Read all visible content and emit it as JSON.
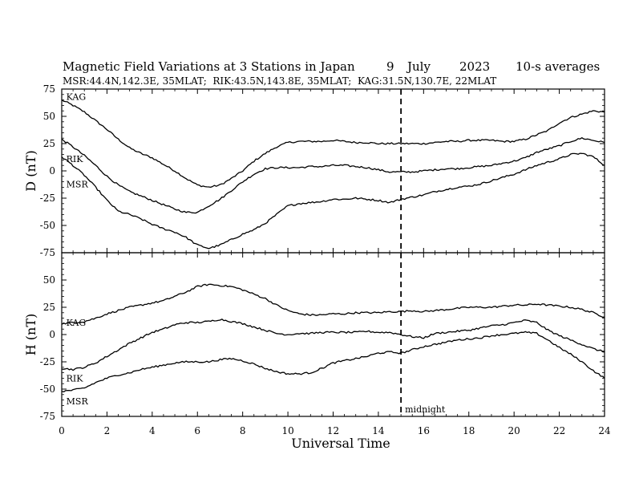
{
  "chart_data": {
    "type": "line",
    "title": "Magnetic Field Variations at 3 Stations in Japan",
    "date": "9 July 2023",
    "date_day": "9",
    "date_month": "July",
    "date_year": "2023",
    "averaging": "10-s averages",
    "subtitle": "MSR:44.4N,142.3E, 35MLAT;  RIK:43.5N,143.8E, 35MLAT;  KAG:31.5N,130.7E, 22MLAT",
    "xlabel": "Universal Time",
    "xlim": [
      0,
      24
    ],
    "xticks": [
      0,
      2,
      4,
      6,
      8,
      10,
      12,
      14,
      16,
      18,
      20,
      22,
      24
    ],
    "xtick_labels": [
      "0",
      "2",
      "4",
      "6",
      "8",
      "10",
      "12",
      "14",
      "16",
      "18",
      "20",
      "22",
      "24"
    ],
    "midnight": {
      "x": 15,
      "label": "midnight"
    },
    "x": [
      0,
      0.5,
      1,
      1.5,
      2,
      2.5,
      3,
      3.5,
      4,
      4.5,
      5,
      5.5,
      6,
      6.5,
      7,
      7.5,
      8,
      8.5,
      9,
      9.5,
      10,
      10.5,
      11,
      11.5,
      12,
      12.5,
      13,
      13.5,
      14,
      14.5,
      15,
      15.5,
      16,
      16.5,
      17,
      17.5,
      18,
      18.5,
      19,
      19.5,
      20,
      20.5,
      21,
      21.5,
      22,
      22.5,
      23,
      23.5,
      24
    ],
    "panels": [
      {
        "ylabel": "D (nT)",
        "ylim": [
          -75,
          75
        ],
        "yticks": [
          75,
          50,
          25,
          0,
          -25,
          -50,
          -75
        ],
        "ytick_labels": [
          "75",
          "50",
          "25",
          "0",
          "-25",
          "-50",
          "-75"
        ],
        "series": [
          {
            "name": "KAG",
            "values": [
              65,
              60,
              54,
              46,
              38,
              29,
              21,
              16,
              12,
              6,
              0,
              -7,
              -13,
              -15,
              -13,
              -7,
              0,
              9,
              16,
              22,
              26,
              27,
              27,
              27,
              28,
              27,
              26,
              26,
              25,
              25,
              25,
              25,
              25,
              26,
              27,
              27,
              28,
              28,
              28,
              27,
              27,
              29,
              33,
              37,
              44,
              49,
              52,
              55,
              54
            ]
          },
          {
            "name": "RIK",
            "values": [
              29,
              22,
              14,
              5,
              -5,
              -13,
              -19,
              -23,
              -27,
              -31,
              -35,
              -38,
              -38,
              -32,
              -26,
              -18,
              -10,
              -3,
              2,
              3,
              3,
              3,
              4,
              4,
              5,
              5,
              4,
              3,
              1,
              -1,
              -1,
              -1,
              0,
              1,
              2,
              2,
              3,
              4,
              5,
              7,
              9,
              12,
              17,
              20,
              23,
              27,
              30,
              28,
              26
            ]
          },
          {
            "name": "MSR",
            "values": [
              13,
              5,
              -4,
              -15,
              -27,
              -37,
              -40,
              -44,
              -49,
              -53,
              -56,
              -61,
              -68,
              -71,
              -68,
              -63,
              -58,
              -54,
              -48,
              -40,
              -32,
              -30,
              -29,
              -28,
              -26,
              -26,
              -25,
              -26,
              -27,
              -29,
              -26,
              -24,
              -22,
              -19,
              -17,
              -15,
              -14,
              -12,
              -9,
              -6,
              -3,
              1,
              5,
              8,
              11,
              15,
              16,
              13,
              5
            ]
          }
        ],
        "series_labels": [
          {
            "text": "KAG",
            "x": 0.2,
            "y": 68
          },
          {
            "text": "RIK",
            "x": 0.2,
            "y": 11
          },
          {
            "text": "MSR",
            "x": 0.2,
            "y": -12
          }
        ]
      },
      {
        "ylabel": "H (nT)",
        "ylim": [
          -75,
          75
        ],
        "yticks": [
          75,
          50,
          25,
          0,
          -25,
          -50,
          -75
        ],
        "ytick_labels": [
          "75",
          "50",
          "25",
          "0",
          "-25",
          "-50",
          "-75"
        ],
        "series": [
          {
            "name": "KAG",
            "values": [
              10,
              11,
              12,
              15,
              19,
              22,
              25,
              27,
              29,
              31,
              35,
              39,
              44,
              46,
              45,
              44,
              41,
              37,
              33,
              27,
              22,
              19,
              18,
              18,
              19,
              19,
              20,
              20,
              20,
              21,
              21,
              22,
              21,
              22,
              23,
              24,
              25,
              25,
              25,
              26,
              27,
              27,
              28,
              27,
              26,
              25,
              23,
              20,
              16
            ]
          },
          {
            "name": "RIK",
            "values": [
              -31,
              -32,
              -30,
              -26,
              -20,
              -14,
              -8,
              -3,
              2,
              5,
              9,
              11,
              11,
              12,
              14,
              12,
              10,
              7,
              4,
              1,
              0,
              1,
              1,
              2,
              2,
              2,
              2,
              3,
              2,
              2,
              0,
              -2,
              -3,
              1,
              2,
              3,
              4,
              6,
              8,
              9,
              11,
              13,
              11,
              4,
              -1,
              -5,
              -9,
              -13,
              -16
            ]
          },
          {
            "name": "MSR",
            "values": [
              -52,
              -51,
              -49,
              -44,
              -40,
              -37,
              -35,
              -32,
              -30,
              -28,
              -26,
              -25,
              -25,
              -25,
              -23,
              -22,
              -24,
              -27,
              -31,
              -34,
              -36,
              -36,
              -35,
              -31,
              -26,
              -24,
              -22,
              -20,
              -17,
              -16,
              -17,
              -14,
              -11,
              -9,
              -7,
              -5,
              -4,
              -3,
              -1,
              0,
              1,
              2,
              1,
              -5,
              -12,
              -18,
              -25,
              -33,
              -40
            ]
          }
        ],
        "series_labels": [
          {
            "text": "KAG",
            "x": 0.2,
            "y": 11
          },
          {
            "text": "RIK",
            "x": 0.2,
            "y": -40
          },
          {
            "text": "MSR",
            "x": 0.2,
            "y": -61
          }
        ]
      }
    ]
  }
}
